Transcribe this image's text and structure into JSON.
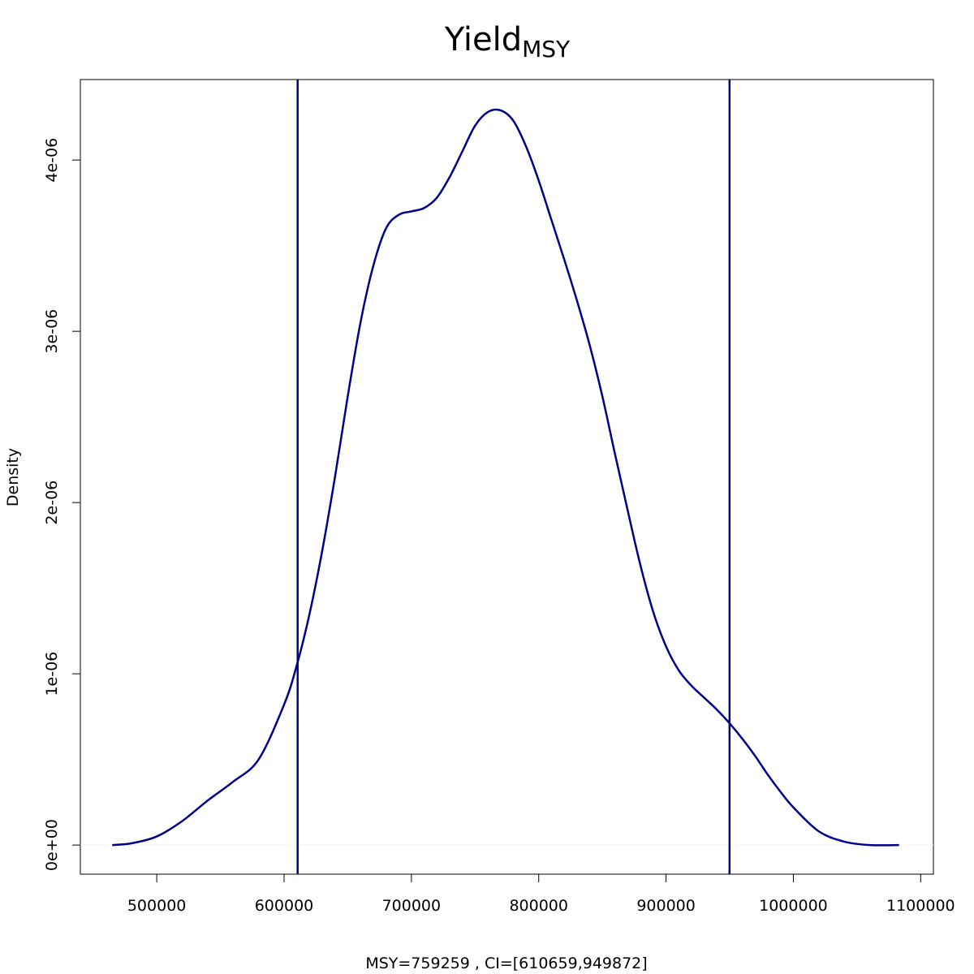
{
  "chart_data": {
    "type": "line",
    "title": "Yield",
    "title_subscript": "MSY",
    "xlabel": "MSY=759259 , CI=[610659,949872]",
    "ylabel": "Density",
    "xlim": [
      440000,
      1110000
    ],
    "ylim": [
      -1.7e-07,
      4.47e-06
    ],
    "x_ticks": [
      500000,
      600000,
      700000,
      800000,
      900000,
      1000000,
      1100000
    ],
    "x_tick_labels": [
      "500000",
      "600000",
      "700000",
      "800000",
      "900000",
      "1000000",
      "1100000"
    ],
    "y_ticks": [
      0,
      1e-06,
      2e-06,
      3e-06,
      4e-06
    ],
    "y_tick_labels": [
      "0e+00",
      "1e-06",
      "2e-06",
      "3e-06",
      "4e-06"
    ],
    "zero_line": true,
    "grid": false,
    "legend": "none",
    "line_color": "#00008B",
    "series": [
      {
        "x": [
          465000,
          480000,
          500000,
          520000,
          540000,
          560000,
          580000,
          600000,
          610000,
          620000,
          630000,
          640000,
          650000,
          660000,
          670000,
          680000,
          690000,
          700000,
          710000,
          720000,
          730000,
          740000,
          750000,
          760000,
          770000,
          780000,
          790000,
          800000,
          810000,
          820000,
          830000,
          840000,
          850000,
          860000,
          870000,
          880000,
          890000,
          900000,
          910000,
          920000,
          930000,
          940000,
          950000,
          960000,
          970000,
          980000,
          990000,
          1000000,
          1020000,
          1040000,
          1060000,
          1083000
        ],
        "y": [
          0.0,
          1e-08,
          5e-08,
          1.4e-07,
          2.6e-07,
          3.7e-07,
          5e-07,
          8.2e-07,
          1.05e-06,
          1.35e-06,
          1.72e-06,
          2.15e-06,
          2.62e-06,
          3.05e-06,
          3.38e-06,
          3.6e-06,
          3.68e-06,
          3.7e-06,
          3.72e-06,
          3.78e-06,
          3.9e-06,
          4.05e-06,
          4.2e-06,
          4.28e-06,
          4.29e-06,
          4.23e-06,
          4.08e-06,
          3.88e-06,
          3.65e-06,
          3.42e-06,
          3.18e-06,
          2.92e-06,
          2.62e-06,
          2.28e-06,
          1.95e-06,
          1.63e-06,
          1.36e-06,
          1.16e-06,
          1.02e-06,
          9.3e-07,
          8.6e-07,
          7.9e-07,
          7.1e-07,
          6.2e-07,
          5.2e-07,
          4.1e-07,
          3.1e-07,
          2.2e-07,
          8e-08,
          2e-08,
          0.0,
          0.0
        ]
      }
    ],
    "vlines": [
      610659,
      949872
    ]
  }
}
